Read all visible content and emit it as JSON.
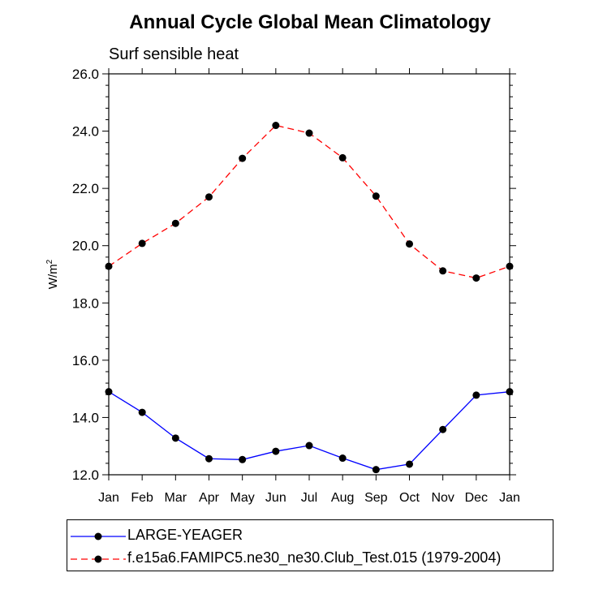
{
  "chart_data": {
    "type": "line",
    "title": "Annual Cycle Global Mean Climatology",
    "subtitle": "Surf sensible heat",
    "ylabel": "W/m",
    "ylabel_superscript": "2",
    "ylim": [
      12.0,
      26.0
    ],
    "yticks": [
      "12.0",
      "14.0",
      "16.0",
      "18.0",
      "20.0",
      "22.0",
      "24.0",
      "26.0"
    ],
    "categories": [
      "Jan",
      "Feb",
      "Mar",
      "Apr",
      "May",
      "Jun",
      "Jul",
      "Aug",
      "Sep",
      "Oct",
      "Nov",
      "Dec",
      "Jan"
    ],
    "series": [
      {
        "name": "LARGE-YEAGER",
        "color": "#0000ff",
        "dash": "solid",
        "values": [
          14.9,
          14.18,
          13.28,
          12.56,
          12.53,
          12.82,
          13.02,
          12.58,
          12.18,
          12.37,
          13.58,
          14.78,
          14.9
        ]
      },
      {
        "name": "f.e15a6.FAMIPC5.ne30_ne30.Club_Test.015 (1979-2004)",
        "color": "#ff0000",
        "dash": "dashed",
        "values": [
          19.28,
          20.08,
          20.78,
          21.7,
          23.05,
          24.2,
          23.93,
          23.07,
          21.73,
          20.06,
          19.12,
          18.87,
          19.28
        ]
      }
    ],
    "grid": false,
    "legend_position": "bottom"
  }
}
